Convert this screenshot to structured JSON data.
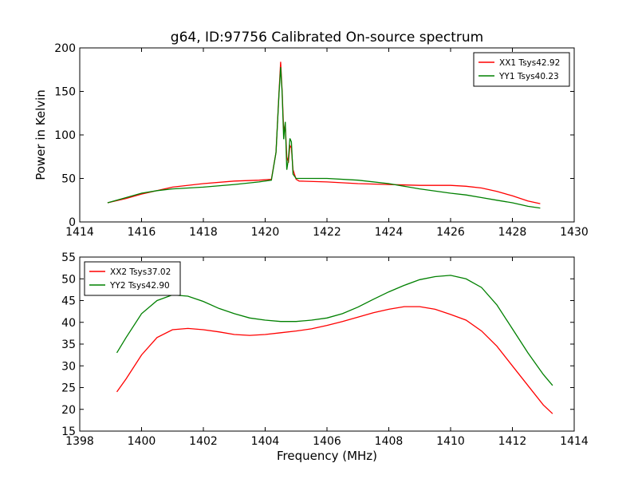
{
  "figure": {
    "title": "g64, ID:97756 Calibrated On-source spectrum"
  },
  "chart_data": [
    {
      "type": "line",
      "ylabel": "Power in Kelvin",
      "xlabel": "",
      "xlim": [
        1414,
        1430
      ],
      "ylim": [
        0,
        200
      ],
      "xticks": [
        1414,
        1416,
        1418,
        1420,
        1422,
        1424,
        1426,
        1428,
        1430
      ],
      "yticks": [
        0,
        50,
        100,
        150,
        200
      ],
      "grid": false,
      "legend_position": "top-right",
      "series": [
        {
          "name": "XX1 Tsys42.92",
          "color": "#ff0000",
          "x": [
            1414.9,
            1415.5,
            1416.0,
            1416.5,
            1417.0,
            1418.0,
            1419.0,
            1419.8,
            1420.2,
            1420.35,
            1420.45,
            1420.5,
            1420.55,
            1420.6,
            1420.65,
            1420.7,
            1420.75,
            1420.8,
            1420.85,
            1420.9,
            1421.0,
            1421.1,
            1422.0,
            1423.0,
            1424.0,
            1425.0,
            1426.0,
            1426.5,
            1427.0,
            1427.5,
            1428.0,
            1428.5,
            1428.9
          ],
          "y": [
            22,
            27,
            32,
            36,
            40,
            44,
            47,
            48,
            49,
            80,
            150,
            184,
            150,
            105,
            112,
            75,
            68,
            88,
            85,
            60,
            49,
            47,
            46,
            44,
            43,
            42,
            42,
            41,
            39,
            35,
            30,
            24,
            21
          ]
        },
        {
          "name": "YY1 Tsys40.23",
          "color": "#008000",
          "x": [
            1414.9,
            1415.5,
            1416.0,
            1416.5,
            1417.0,
            1418.0,
            1419.0,
            1419.8,
            1420.2,
            1420.35,
            1420.45,
            1420.5,
            1420.55,
            1420.6,
            1420.65,
            1420.7,
            1420.75,
            1420.8,
            1420.85,
            1420.9,
            1421.0,
            1421.1,
            1422.0,
            1423.0,
            1424.0,
            1425.0,
            1426.0,
            1426.5,
            1427.0,
            1427.5,
            1428.0,
            1428.5,
            1428.9
          ],
          "y": [
            22,
            28,
            33,
            36,
            38,
            40,
            43,
            46,
            48,
            80,
            148,
            178,
            148,
            95,
            115,
            60,
            72,
            96,
            92,
            55,
            50,
            50,
            50,
            48,
            44,
            38,
            33,
            31,
            28,
            25,
            22,
            18,
            16
          ]
        }
      ]
    },
    {
      "type": "line",
      "xlabel": "Frequency (MHz)",
      "ylabel": "",
      "xlim": [
        1398,
        1414
      ],
      "ylim": [
        15,
        55
      ],
      "xticks": [
        1398,
        1400,
        1402,
        1404,
        1406,
        1408,
        1410,
        1412,
        1414
      ],
      "yticks": [
        15,
        20,
        25,
        30,
        35,
        40,
        45,
        50,
        55
      ],
      "grid": false,
      "legend_position": "top-left",
      "series": [
        {
          "name": "XX2 Tsys37.02",
          "color": "#ff0000",
          "x": [
            1399.2,
            1399.5,
            1400.0,
            1400.5,
            1401.0,
            1401.5,
            1402.0,
            1402.5,
            1403.0,
            1403.5,
            1404.0,
            1404.5,
            1405.0,
            1405.5,
            1406.0,
            1406.5,
            1407.0,
            1407.5,
            1408.0,
            1408.5,
            1409.0,
            1409.5,
            1410.0,
            1410.5,
            1411.0,
            1411.5,
            1412.0,
            1412.5,
            1413.0,
            1413.3
          ],
          "y": [
            24,
            27,
            32.5,
            36.5,
            38.3,
            38.6,
            38.3,
            37.8,
            37.2,
            37.0,
            37.2,
            37.6,
            38.0,
            38.5,
            39.3,
            40.2,
            41.2,
            42.2,
            43.0,
            43.6,
            43.6,
            43.0,
            41.8,
            40.5,
            38.0,
            34.5,
            30.0,
            25.5,
            21.0,
            19.0
          ]
        },
        {
          "name": "YY2 Tsys42.90",
          "color": "#008000",
          "x": [
            1399.2,
            1399.5,
            1400.0,
            1400.5,
            1401.0,
            1401.5,
            1402.0,
            1402.5,
            1403.0,
            1403.5,
            1404.0,
            1404.5,
            1405.0,
            1405.5,
            1406.0,
            1406.5,
            1407.0,
            1407.5,
            1408.0,
            1408.5,
            1409.0,
            1409.5,
            1410.0,
            1410.5,
            1411.0,
            1411.5,
            1412.0,
            1412.5,
            1413.0,
            1413.3
          ],
          "y": [
            33,
            36.5,
            42,
            45,
            46.3,
            46.0,
            44.8,
            43.2,
            42.0,
            41.0,
            40.5,
            40.2,
            40.2,
            40.5,
            41.0,
            42.0,
            43.5,
            45.3,
            47.0,
            48.5,
            49.8,
            50.5,
            50.8,
            50.0,
            48.0,
            44.0,
            38.5,
            33.0,
            28.0,
            25.5
          ]
        }
      ]
    }
  ]
}
